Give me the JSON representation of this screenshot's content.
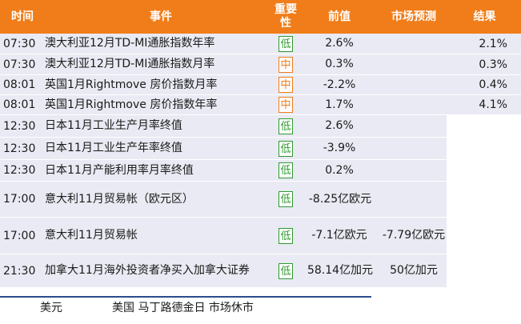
{
  "header": {
    "time": "时间",
    "event": "事件",
    "importance": "重要\n性",
    "previous": "前值",
    "forecast": "市场预测",
    "result": "结果"
  },
  "rows": [
    {
      "time": "07:30",
      "event": "澳大利亚12月TD-MI通胀指数年率",
      "importance": "低",
      "level": "low",
      "previous": "2.6%",
      "forecast": "",
      "result": "2.1%"
    },
    {
      "time": "07:30",
      "event": "澳大利亚12月TD-MI通胀指数月率",
      "importance": "中",
      "level": "mid",
      "previous": "0.3%",
      "forecast": "",
      "result": "0.3%"
    },
    {
      "time": "08:01",
      "event": "英国1月Rightmove 房价指数月率",
      "importance": "中",
      "level": "mid",
      "previous": "-2.2%",
      "forecast": "",
      "result": "0.4%"
    },
    {
      "time": "08:01",
      "event": "英国1月Rightmove 房价指数年率",
      "importance": "中",
      "level": "mid",
      "previous": "1.7%",
      "forecast": "",
      "result": "4.1%"
    },
    {
      "time": "12:30",
      "event": "日本11月工业生产月率终值",
      "importance": "低",
      "level": "low",
      "previous": "2.6%",
      "forecast": "",
      "result": ""
    },
    {
      "time": "12:30",
      "event": "日本11月工业生产年率终值",
      "importance": "低",
      "level": "low",
      "previous": "-3.9%",
      "forecast": "",
      "result": ""
    },
    {
      "time": "12:30",
      "event": "日本11月产能利用率月率终值",
      "importance": "低",
      "level": "low",
      "previous": "0.2%",
      "forecast": "",
      "result": ""
    },
    {
      "time": "17:00",
      "event": "意大利11月贸易帐（欧元区）",
      "importance": "低",
      "level": "low",
      "previous": "-8.25亿欧元",
      "forecast": "",
      "result": ""
    },
    {
      "time": "17:00",
      "event": "意大利11月贸易帐",
      "importance": "低",
      "level": "low",
      "previous": "-7.1亿欧元",
      "forecast": "-7.79亿欧元",
      "result": ""
    },
    {
      "time": "21:30",
      "event": "加拿大11月海外投资者净买入加拿大证券",
      "importance": "低",
      "level": "low",
      "previous": "58.14亿加元",
      "forecast": "50亿加元",
      "result": ""
    }
  ],
  "footer": {
    "currency": "美元",
    "note": "美国 马丁路德金日 市场休市"
  },
  "colors": {
    "header_bg": "#f07d1a",
    "row_bg": "#e9eaf3",
    "low": "#2e9a2e",
    "mid": "#f07d1a",
    "footer_line": "#2a4d8f"
  }
}
